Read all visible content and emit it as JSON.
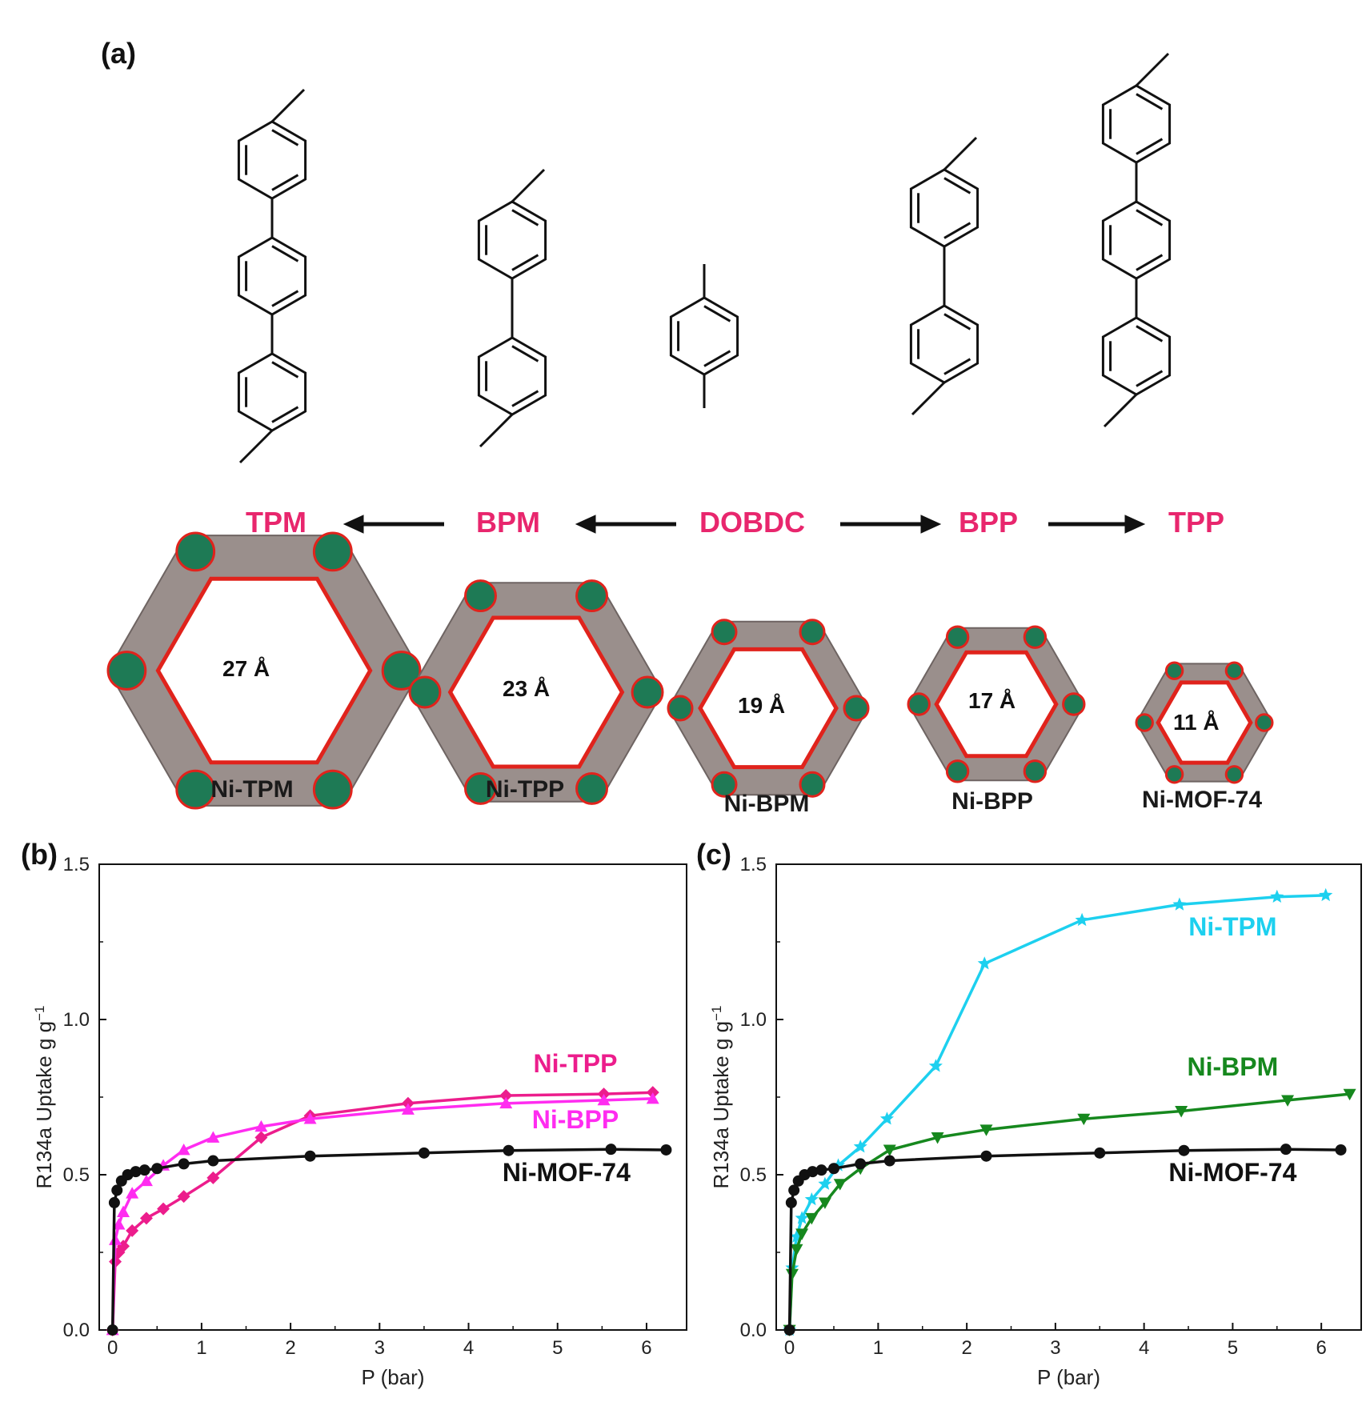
{
  "panel_a": {
    "label": "(a)",
    "linkers": [
      {
        "name": "TPM",
        "color": "#e8266d"
      },
      {
        "name": "BPM",
        "color": "#e8266d"
      },
      {
        "name": "DOBDC",
        "color": "#e8266d"
      },
      {
        "name": "BPP",
        "color": "#e8266d"
      },
      {
        "name": "TPP",
        "color": "#e8266d"
      }
    ],
    "frameworks": [
      {
        "name": "Ni-TPM",
        "pore": "27 Å"
      },
      {
        "name": "Ni-TPP",
        "pore": "23 Å"
      },
      {
        "name": "Ni-BPM",
        "pore": "19 Å"
      },
      {
        "name": "Ni-BPP",
        "pore": "17 Å"
      },
      {
        "name": "Ni-MOF-74",
        "pore": "11 Å"
      }
    ],
    "atom_colors": {
      "metal": "#1e7a55",
      "oxygen": "#e0231c",
      "carbon": "#9a8f8c"
    }
  },
  "chart_data": [
    {
      "panel": "(b)",
      "type": "line",
      "xlabel": "P (bar)",
      "ylabel": "R134a Uptake g g",
      "ylabel_sup": "−1",
      "xlim": [
        -0.15,
        6.45
      ],
      "ylim": [
        0,
        1.5
      ],
      "xticks": [
        "0",
        "1",
        "2",
        "3",
        "4",
        "5",
        "6"
      ],
      "yticks": [
        "0.0",
        "0.5",
        "1.0",
        "1.5"
      ],
      "series": [
        {
          "name": "Ni-TPP",
          "color": "#ec1d8c",
          "marker": "diamond",
          "x": [
            0.0,
            0.03,
            0.07,
            0.12,
            0.22,
            0.38,
            0.57,
            0.8,
            1.13,
            1.67,
            2.22,
            3.32,
            4.42,
            5.52,
            6.07
          ],
          "y": [
            0.0,
            0.22,
            0.25,
            0.27,
            0.32,
            0.36,
            0.39,
            0.43,
            0.49,
            0.62,
            0.69,
            0.73,
            0.755,
            0.76,
            0.765
          ]
        },
        {
          "name": "Ni-BPP",
          "color": "#ff2cf0",
          "marker": "triangle",
          "x": [
            0.0,
            0.03,
            0.07,
            0.12,
            0.22,
            0.38,
            0.57,
            0.8,
            1.13,
            1.67,
            2.22,
            3.32,
            4.42,
            5.52,
            6.07
          ],
          "y": [
            0.0,
            0.29,
            0.34,
            0.38,
            0.44,
            0.48,
            0.53,
            0.58,
            0.62,
            0.655,
            0.68,
            0.71,
            0.73,
            0.74,
            0.745
          ]
        },
        {
          "name": "Ni-MOF-74",
          "color": "#111111",
          "marker": "circle",
          "x": [
            0.0,
            0.02,
            0.05,
            0.1,
            0.17,
            0.26,
            0.36,
            0.5,
            0.8,
            1.13,
            2.22,
            3.5,
            4.45,
            5.6,
            6.22
          ],
          "y": [
            0.0,
            0.41,
            0.45,
            0.48,
            0.5,
            0.51,
            0.515,
            0.52,
            0.535,
            0.545,
            0.56,
            0.57,
            0.578,
            0.582,
            0.58
          ]
        }
      ],
      "annotations": [
        {
          "text": "Ni-TPP",
          "color": "#ec1d8c",
          "x": 5.2,
          "y": 0.83
        },
        {
          "text": "Ni-BPP",
          "color": "#ff2cf0",
          "x": 5.2,
          "y": 0.65
        },
        {
          "text": "Ni-MOF-74",
          "color": "#111111",
          "x": 5.1,
          "y": 0.48
        }
      ]
    },
    {
      "panel": "(c)",
      "type": "line",
      "xlabel": "P (bar)",
      "ylabel": "R134a Uptake g g",
      "ylabel_sup": "−1",
      "xlim": [
        -0.15,
        6.45
      ],
      "ylim": [
        0,
        1.5
      ],
      "xticks": [
        "0",
        "1",
        "2",
        "3",
        "4",
        "5",
        "6"
      ],
      "yticks": [
        "0.0",
        "0.5",
        "1.0",
        "1.5"
      ],
      "series": [
        {
          "name": "Ni-TPM",
          "color": "#1dd0ef",
          "marker": "star",
          "x": [
            0.0,
            0.03,
            0.08,
            0.14,
            0.25,
            0.4,
            0.55,
            0.8,
            1.1,
            1.65,
            2.2,
            3.3,
            4.4,
            5.5,
            6.05
          ],
          "y": [
            0.0,
            0.2,
            0.3,
            0.36,
            0.42,
            0.47,
            0.53,
            0.59,
            0.68,
            0.85,
            1.18,
            1.32,
            1.37,
            1.395,
            1.4
          ]
        },
        {
          "name": "Ni-BPM",
          "color": "#16881e",
          "marker": "triangle-down",
          "x": [
            0.0,
            0.03,
            0.08,
            0.14,
            0.25,
            0.4,
            0.57,
            0.8,
            1.13,
            1.67,
            2.22,
            3.32,
            4.42,
            5.62,
            6.32
          ],
          "y": [
            0.0,
            0.18,
            0.26,
            0.31,
            0.36,
            0.41,
            0.47,
            0.52,
            0.58,
            0.62,
            0.645,
            0.68,
            0.705,
            0.74,
            0.76
          ]
        },
        {
          "name": "Ni-MOF-74",
          "color": "#111111",
          "marker": "circle",
          "x": [
            0.0,
            0.02,
            0.05,
            0.1,
            0.17,
            0.26,
            0.36,
            0.5,
            0.8,
            1.13,
            2.22,
            3.5,
            4.45,
            5.6,
            6.22
          ],
          "y": [
            0.0,
            0.41,
            0.45,
            0.48,
            0.5,
            0.51,
            0.515,
            0.52,
            0.535,
            0.545,
            0.56,
            0.57,
            0.578,
            0.582,
            0.58
          ]
        }
      ],
      "annotations": [
        {
          "text": "Ni-TPM",
          "color": "#1dd0ef",
          "x": 5.0,
          "y": 1.27
        },
        {
          "text": "Ni-BPM",
          "color": "#16881e",
          "x": 5.0,
          "y": 0.82
        },
        {
          "text": "Ni-MOF-74",
          "color": "#111111",
          "x": 5.0,
          "y": 0.48
        }
      ]
    }
  ]
}
